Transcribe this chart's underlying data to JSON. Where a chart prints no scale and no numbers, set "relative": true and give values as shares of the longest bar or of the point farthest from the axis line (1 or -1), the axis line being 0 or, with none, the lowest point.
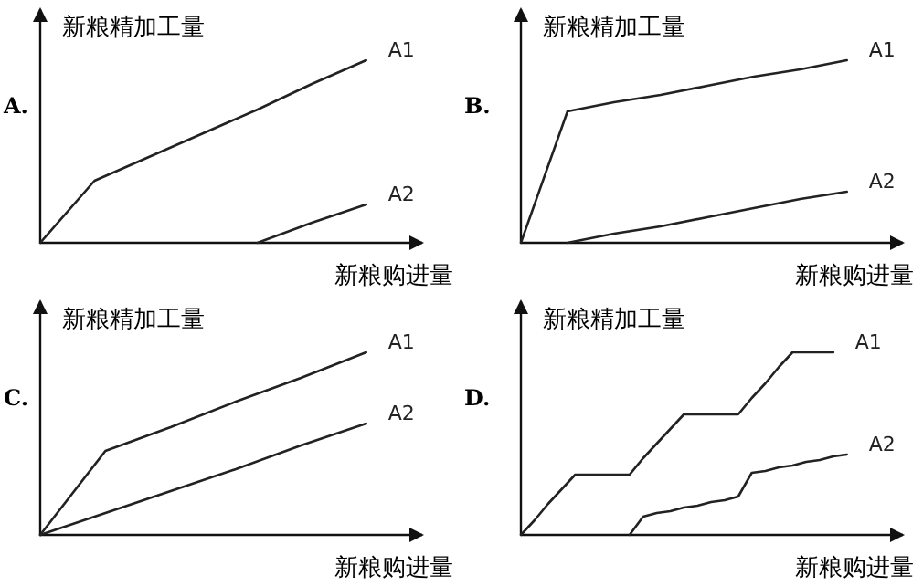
{
  "chart_data": [
    {
      "type": "line",
      "title": "A.",
      "xlabel": "新粮购进量",
      "ylabel": "新粮精加工量",
      "relative": true,
      "categories": [
        null,
        null,
        null,
        null,
        null,
        null,
        null
      ],
      "series": [
        {
          "name": "A1",
          "color": "#222222",
          "values": [
            0,
            0.34,
            0.47,
            0.6,
            0.73,
            0.87,
            1
          ]
        },
        {
          "name": "A2",
          "color": "#222222",
          "values": [
            null,
            null,
            null,
            null,
            0,
            0.11,
            0.21
          ]
        }
      ]
    },
    {
      "type": "line",
      "title": "B.",
      "xlabel": "新粮购进量",
      "ylabel": "新粮精加工量",
      "relative": true,
      "categories": [
        null,
        null,
        null,
        null,
        null,
        null,
        null,
        null
      ],
      "series": [
        {
          "name": "A1",
          "color": "#222222",
          "values": [
            0,
            0.72,
            0.77,
            0.81,
            0.86,
            0.91,
            0.95,
            1
          ]
        },
        {
          "name": "A2",
          "color": "#222222",
          "values": [
            null,
            0,
            0.05,
            0.09,
            0.14,
            0.19,
            0.24,
            0.28
          ]
        }
      ]
    },
    {
      "type": "line",
      "title": "C.",
      "xlabel": "新粮购进量",
      "ylabel": "新粮精加工量",
      "relative": true,
      "categories": [
        null,
        null,
        null,
        null,
        null,
        null
      ],
      "series": [
        {
          "name": "A1",
          "color": "#222222",
          "values": [
            0,
            0.46,
            0.59,
            0.73,
            0.86,
            1
          ]
        },
        {
          "name": "A2",
          "color": "#222222",
          "values": [
            0,
            0.12,
            0.24,
            0.36,
            0.49,
            0.61
          ]
        }
      ]
    },
    {
      "type": "line",
      "title": "D.",
      "xlabel": "新粮购进量",
      "ylabel": "新粮精加工量",
      "relative": true,
      "categories": [
        null,
        null,
        null,
        null,
        null,
        null,
        null,
        null,
        null,
        null,
        null,
        null,
        null,
        null,
        null,
        null,
        null,
        null,
        null,
        null,
        null,
        null,
        null,
        null,
        null
      ],
      "series": [
        {
          "name": "A1",
          "color": "#222222",
          "values": [
            0,
            0.08,
            0.17,
            0.25,
            0.33,
            0.33,
            0.33,
            0.33,
            0.33,
            0.42,
            0.5,
            0.58,
            0.66,
            0.66,
            0.66,
            0.66,
            0.66,
            0.75,
            0.83,
            0.92,
            1,
            1,
            1,
            1,
            null
          ]
        },
        {
          "name": "A2",
          "color": "#222222",
          "values": [
            null,
            null,
            null,
            null,
            null,
            null,
            null,
            null,
            0,
            0.1,
            0.12,
            0.13,
            0.15,
            0.16,
            0.18,
            0.19,
            0.21,
            0.34,
            0.35,
            0.37,
            0.38,
            0.4,
            0.41,
            0.43,
            0.44
          ]
        }
      ]
    }
  ]
}
